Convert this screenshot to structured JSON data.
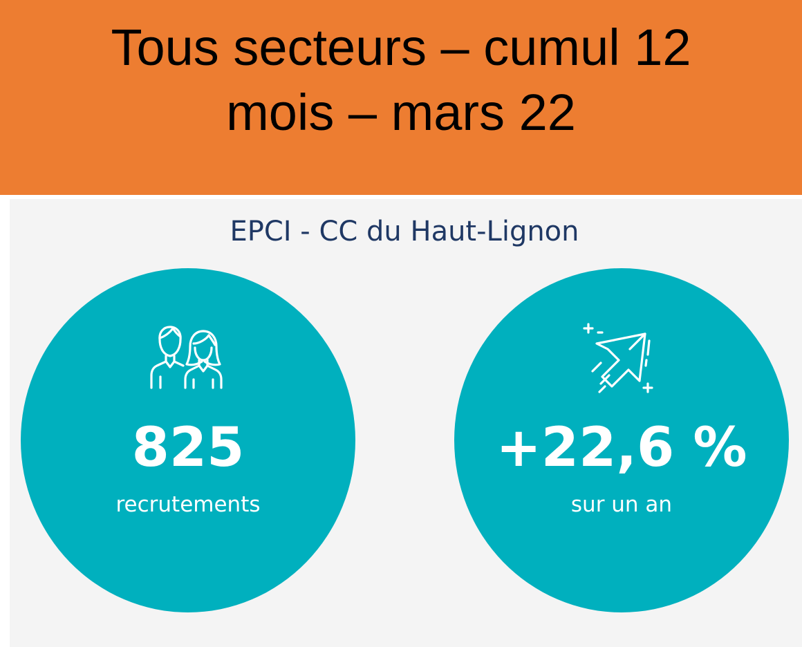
{
  "header": {
    "title_line1": "Tous secteurs – cumul 12",
    "title_line2": "mois – mars 22",
    "background_color": "#ED7D31"
  },
  "subtitle": "EPCI - CC du Haut-Lignon",
  "theme": {
    "circle_color": "#00B0BE",
    "subtitle_color": "#1F3864",
    "panel_color": "#F4F4F4"
  },
  "stats": [
    {
      "icon": "people-icon",
      "value": "825",
      "label": "recrutements"
    },
    {
      "icon": "growth-arrow-icon",
      "value": "+22,6 %",
      "label": "sur un an"
    }
  ]
}
